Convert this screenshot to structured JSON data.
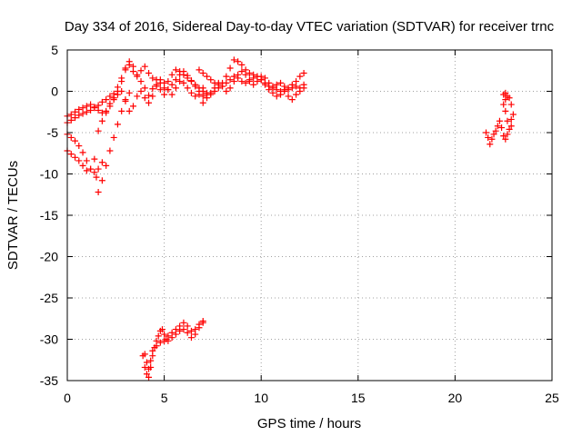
{
  "chart_data": {
    "type": "scatter",
    "title": "Day 334 of 2016, Sidereal Day-to-day VTEC variation (SDTVAR) for receiver trnc",
    "xlabel": "GPS time / hours",
    "ylabel": "SDTVAR / TECUs",
    "xlim": [
      0,
      25
    ],
    "ylim": [
      -35,
      5
    ],
    "xticks": [
      "0",
      "5",
      "10",
      "15",
      "20",
      "25"
    ],
    "yticks": [
      "5",
      "0",
      "-5",
      "-10",
      "-15",
      "-20",
      "-25",
      "-30",
      "-35"
    ],
    "grid": true,
    "marker": "plus",
    "color": "#ff0000",
    "series": [
      {
        "points": [
          [
            0.0,
            -3.0
          ],
          [
            0.2,
            -2.8
          ],
          [
            0.4,
            -2.5
          ],
          [
            0.6,
            -2.2
          ],
          [
            0.8,
            -2.0
          ],
          [
            1.0,
            -1.8
          ],
          [
            1.2,
            -1.6
          ],
          [
            1.4,
            -1.9
          ],
          [
            1.6,
            -2.3
          ],
          [
            1.8,
            -2.6
          ],
          [
            2.0,
            -2.4
          ],
          [
            2.2,
            -1.5
          ],
          [
            2.4,
            -0.8
          ],
          [
            2.6,
            0.0
          ],
          [
            2.8,
            1.2
          ],
          [
            3.0,
            2.6
          ],
          [
            3.2,
            3.6
          ],
          [
            3.4,
            3.0
          ],
          [
            3.6,
            2.0
          ],
          [
            3.8,
            1.2
          ],
          [
            4.0,
            0.4
          ],
          [
            4.2,
            -0.5
          ],
          [
            4.4,
            0.3
          ],
          [
            4.6,
            1.4
          ],
          [
            4.8,
            1.0
          ],
          [
            5.0,
            0.4
          ],
          [
            5.2,
            1.2
          ],
          [
            5.4,
            2.0
          ],
          [
            5.6,
            2.6
          ],
          [
            5.8,
            2.4
          ],
          [
            6.0,
            2.0
          ],
          [
            6.2,
            1.6
          ],
          [
            6.4,
            1.2
          ],
          [
            6.6,
            0.8
          ],
          [
            6.8,
            0.4
          ]
        ]
      },
      {
        "points": [
          [
            0.0,
            -3.8
          ],
          [
            0.2,
            -3.5
          ],
          [
            0.4,
            -3.2
          ],
          [
            0.6,
            -2.9
          ],
          [
            0.8,
            -2.7
          ],
          [
            1.0,
            -2.5
          ],
          [
            1.2,
            -2.3
          ],
          [
            1.4,
            -2.0
          ],
          [
            1.6,
            -1.7
          ],
          [
            1.8,
            -1.3
          ],
          [
            2.0,
            -1.0
          ],
          [
            2.2,
            -0.6
          ],
          [
            2.4,
            -0.3
          ],
          [
            2.6,
            0.5
          ],
          [
            2.8,
            1.6
          ],
          [
            3.0,
            2.8
          ],
          [
            3.2,
            3.2
          ],
          [
            3.4,
            2.4
          ],
          [
            3.6,
            1.8
          ],
          [
            3.8,
            2.5
          ],
          [
            4.0,
            3.0
          ],
          [
            4.2,
            2.2
          ],
          [
            4.4,
            1.6
          ],
          [
            4.6,
            0.8
          ],
          [
            4.8,
            0.2
          ],
          [
            5.0,
            -0.4
          ],
          [
            5.2,
            0.2
          ],
          [
            5.4,
            0.8
          ],
          [
            5.6,
            1.4
          ],
          [
            5.8,
            2.0
          ],
          [
            6.0,
            2.4
          ],
          [
            6.2,
            1.9
          ],
          [
            6.4,
            1.3
          ],
          [
            6.6,
            0.6
          ],
          [
            6.8,
            0.0
          ],
          [
            7.0,
            -0.6
          ],
          [
            7.2,
            -0.2
          ]
        ]
      },
      {
        "points": [
          [
            1.6,
            -4.8
          ],
          [
            1.8,
            -3.6
          ],
          [
            2.0,
            -2.6
          ],
          [
            2.2,
            -1.8
          ],
          [
            2.4,
            -1.0
          ],
          [
            2.6,
            -0.4
          ],
          [
            2.8,
            0.0
          ],
          [
            3.0,
            -1.2
          ],
          [
            3.2,
            -2.4
          ],
          [
            3.4,
            -1.8
          ],
          [
            3.6,
            -0.6
          ],
          [
            3.8,
            0.0
          ],
          [
            4.0,
            -0.8
          ],
          [
            4.2,
            -1.4
          ],
          [
            4.4,
            -0.6
          ],
          [
            4.6,
            0.6
          ],
          [
            4.8,
            1.4
          ],
          [
            5.0,
            1.0
          ],
          [
            5.2,
            0.2
          ],
          [
            5.4,
            -0.4
          ],
          [
            5.6,
            0.4
          ],
          [
            5.8,
            1.2
          ],
          [
            6.0,
            1.0
          ],
          [
            6.2,
            0.4
          ],
          [
            6.4,
            -0.2
          ],
          [
            6.6,
            -0.6
          ],
          [
            6.8,
            -0.4
          ],
          [
            7.0,
            0.0
          ]
        ]
      },
      {
        "points": [
          [
            0.0,
            -5.2
          ],
          [
            0.2,
            -5.6
          ],
          [
            0.4,
            -6.0
          ],
          [
            0.6,
            -6.6
          ],
          [
            0.8,
            -7.4
          ],
          [
            1.0,
            -8.4
          ],
          [
            1.2,
            -9.4
          ],
          [
            1.4,
            -9.8
          ],
          [
            1.6,
            -9.4
          ],
          [
            1.8,
            -8.6
          ]
        ]
      },
      {
        "points": [
          [
            0.0,
            -7.2
          ],
          [
            0.2,
            -7.6
          ],
          [
            0.4,
            -8.0
          ],
          [
            0.6,
            -8.4
          ],
          [
            0.8,
            -9.0
          ],
          [
            1.0,
            -9.6
          ],
          [
            1.2,
            -9.4
          ],
          [
            1.4,
            -8.2
          ],
          [
            1.5,
            -10.4
          ],
          [
            1.6,
            -12.2
          ],
          [
            1.8,
            -10.8
          ],
          [
            2.0,
            -9.0
          ],
          [
            2.2,
            -7.2
          ],
          [
            2.4,
            -5.6
          ],
          [
            2.6,
            -4.0
          ],
          [
            2.8,
            -2.4
          ],
          [
            3.0,
            -1.0
          ],
          [
            3.2,
            -0.2
          ]
        ]
      },
      {
        "points": [
          [
            6.8,
            2.6
          ],
          [
            7.0,
            2.2
          ],
          [
            7.2,
            1.8
          ],
          [
            7.4,
            1.4
          ],
          [
            7.6,
            1.0
          ],
          [
            7.8,
            0.8
          ],
          [
            8.0,
            1.0
          ],
          [
            8.2,
            1.8
          ],
          [
            8.4,
            2.8
          ],
          [
            8.6,
            3.8
          ],
          [
            8.8,
            3.6
          ],
          [
            9.0,
            3.2
          ],
          [
            9.2,
            2.6
          ],
          [
            9.4,
            2.2
          ],
          [
            9.6,
            2.0
          ],
          [
            9.8,
            1.8
          ],
          [
            10.0,
            1.4
          ],
          [
            10.2,
            1.0
          ],
          [
            10.4,
            0.6
          ],
          [
            10.6,
            0.4
          ],
          [
            10.8,
            0.2
          ],
          [
            11.0,
            0.0
          ],
          [
            11.2,
            0.2
          ],
          [
            11.4,
            0.4
          ],
          [
            11.6,
            0.8
          ],
          [
            11.8,
            1.2
          ],
          [
            12.0,
            1.8
          ],
          [
            12.2,
            2.2
          ]
        ]
      },
      {
        "points": [
          [
            7.0,
            -1.4
          ],
          [
            7.2,
            -0.8
          ],
          [
            7.4,
            -0.4
          ],
          [
            7.6,
            0.0
          ],
          [
            7.8,
            0.4
          ],
          [
            8.0,
            0.6
          ],
          [
            8.2,
            1.0
          ],
          [
            8.4,
            1.4
          ],
          [
            8.6,
            1.8
          ],
          [
            8.8,
            1.6
          ],
          [
            9.0,
            1.2
          ],
          [
            9.2,
            1.0
          ],
          [
            9.4,
            1.2
          ],
          [
            9.6,
            1.6
          ],
          [
            9.8,
            1.8
          ],
          [
            10.0,
            1.4
          ],
          [
            10.2,
            0.8
          ],
          [
            10.4,
            0.2
          ],
          [
            10.6,
            -0.2
          ],
          [
            10.8,
            -0.6
          ],
          [
            11.0,
            -0.4
          ],
          [
            11.2,
            0.0
          ],
          [
            11.4,
            -0.6
          ],
          [
            11.6,
            -1.0
          ],
          [
            11.8,
            -0.4
          ],
          [
            12.0,
            0.4
          ],
          [
            12.2,
            0.8
          ]
        ]
      },
      {
        "points": [
          [
            7.0,
            0.4
          ],
          [
            7.2,
            -0.4
          ],
          [
            7.4,
            -0.2
          ],
          [
            7.6,
            0.4
          ],
          [
            7.8,
            1.0
          ],
          [
            8.0,
            0.6
          ],
          [
            8.2,
            0.0
          ],
          [
            8.4,
            0.4
          ],
          [
            8.6,
            1.2
          ],
          [
            8.8,
            2.0
          ],
          [
            9.0,
            2.4
          ],
          [
            9.2,
            2.0
          ],
          [
            9.4,
            1.4
          ],
          [
            9.6,
            0.8
          ],
          [
            9.8,
            1.2
          ],
          [
            10.0,
            1.8
          ],
          [
            10.2,
            1.6
          ],
          [
            10.4,
            1.0
          ],
          [
            10.6,
            0.6
          ],
          [
            10.8,
            0.8
          ],
          [
            11.0,
            1.0
          ],
          [
            11.2,
            0.6
          ],
          [
            11.4,
            0.2
          ],
          [
            11.6,
            0.4
          ],
          [
            11.8,
            0.6
          ],
          [
            12.0,
            0.0
          ],
          [
            12.2,
            0.4
          ]
        ]
      },
      {
        "points": [
          [
            3.9,
            -32.0
          ],
          [
            4.0,
            -33.4
          ],
          [
            4.1,
            -34.2
          ],
          [
            4.2,
            -34.6
          ],
          [
            4.3,
            -33.4
          ],
          [
            4.4,
            -32.0
          ],
          [
            4.5,
            -31.0
          ],
          [
            4.6,
            -30.2
          ],
          [
            4.7,
            -29.6
          ],
          [
            4.8,
            -29.0
          ],
          [
            4.9,
            -28.8
          ],
          [
            5.0,
            -29.4
          ],
          [
            5.1,
            -30.0
          ],
          [
            5.2,
            -30.2
          ],
          [
            5.4,
            -29.8
          ],
          [
            5.6,
            -29.4
          ],
          [
            5.8,
            -29.0
          ],
          [
            6.0,
            -28.8
          ],
          [
            6.2,
            -29.2
          ],
          [
            6.4,
            -29.8
          ],
          [
            6.6,
            -29.4
          ],
          [
            6.8,
            -28.6
          ],
          [
            7.0,
            -28.0
          ]
        ]
      },
      {
        "points": [
          [
            4.0,
            -31.8
          ],
          [
            4.1,
            -32.8
          ],
          [
            4.2,
            -33.6
          ],
          [
            4.3,
            -32.6
          ],
          [
            4.4,
            -31.4
          ],
          [
            4.6,
            -30.8
          ],
          [
            4.8,
            -30.4
          ],
          [
            5.0,
            -30.2
          ],
          [
            5.2,
            -29.6
          ],
          [
            5.4,
            -29.2
          ],
          [
            5.6,
            -28.8
          ],
          [
            5.8,
            -28.4
          ],
          [
            6.0,
            -28.0
          ],
          [
            6.2,
            -28.4
          ],
          [
            6.4,
            -29.0
          ],
          [
            6.6,
            -28.8
          ],
          [
            6.8,
            -28.2
          ],
          [
            7.0,
            -27.8
          ]
        ]
      },
      {
        "points": [
          [
            21.6,
            -5.0
          ],
          [
            21.7,
            -5.6
          ],
          [
            21.8,
            -6.4
          ],
          [
            21.9,
            -5.8
          ],
          [
            22.0,
            -5.2
          ],
          [
            22.1,
            -4.8
          ],
          [
            22.2,
            -4.2
          ],
          [
            22.3,
            -3.6
          ],
          [
            22.4,
            -4.4
          ],
          [
            22.5,
            -5.4
          ],
          [
            22.6,
            -5.8
          ],
          [
            22.7,
            -5.2
          ],
          [
            22.8,
            -4.6
          ],
          [
            22.9,
            -4.2
          ],
          [
            22.7,
            -3.6
          ],
          [
            22.6,
            -2.4
          ],
          [
            22.5,
            -1.6
          ],
          [
            22.6,
            -1.0
          ],
          [
            22.7,
            -0.6
          ],
          [
            22.8,
            -0.8
          ],
          [
            22.9,
            -1.6
          ],
          [
            23.0,
            -2.8
          ],
          [
            22.9,
            -3.4
          ],
          [
            22.5,
            -0.4
          ],
          [
            22.6,
            -0.2
          ]
        ]
      }
    ]
  }
}
